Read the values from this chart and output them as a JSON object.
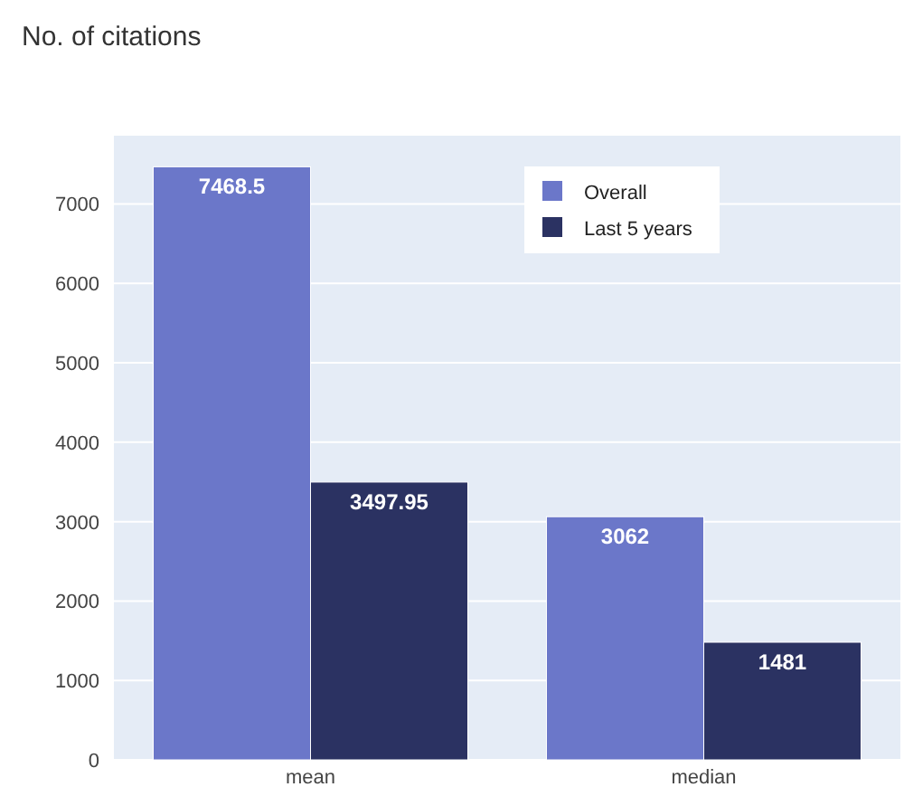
{
  "chart_data": {
    "type": "bar",
    "title": "No. of citations",
    "categories": [
      "mean",
      "median"
    ],
    "series": [
      {
        "name": "Overall",
        "color": "#6b77c9",
        "values": [
          7468.5,
          3062
        ]
      },
      {
        "name": "Last 5 years",
        "color": "#2b3262",
        "values": [
          3497.95,
          1481
        ]
      }
    ],
    "ylim": [
      0,
      7860
    ],
    "yticks": [
      0,
      1000,
      2000,
      3000,
      4000,
      5000,
      6000,
      7000
    ],
    "grid": "y",
    "legend": "top right",
    "data_labels": true
  }
}
